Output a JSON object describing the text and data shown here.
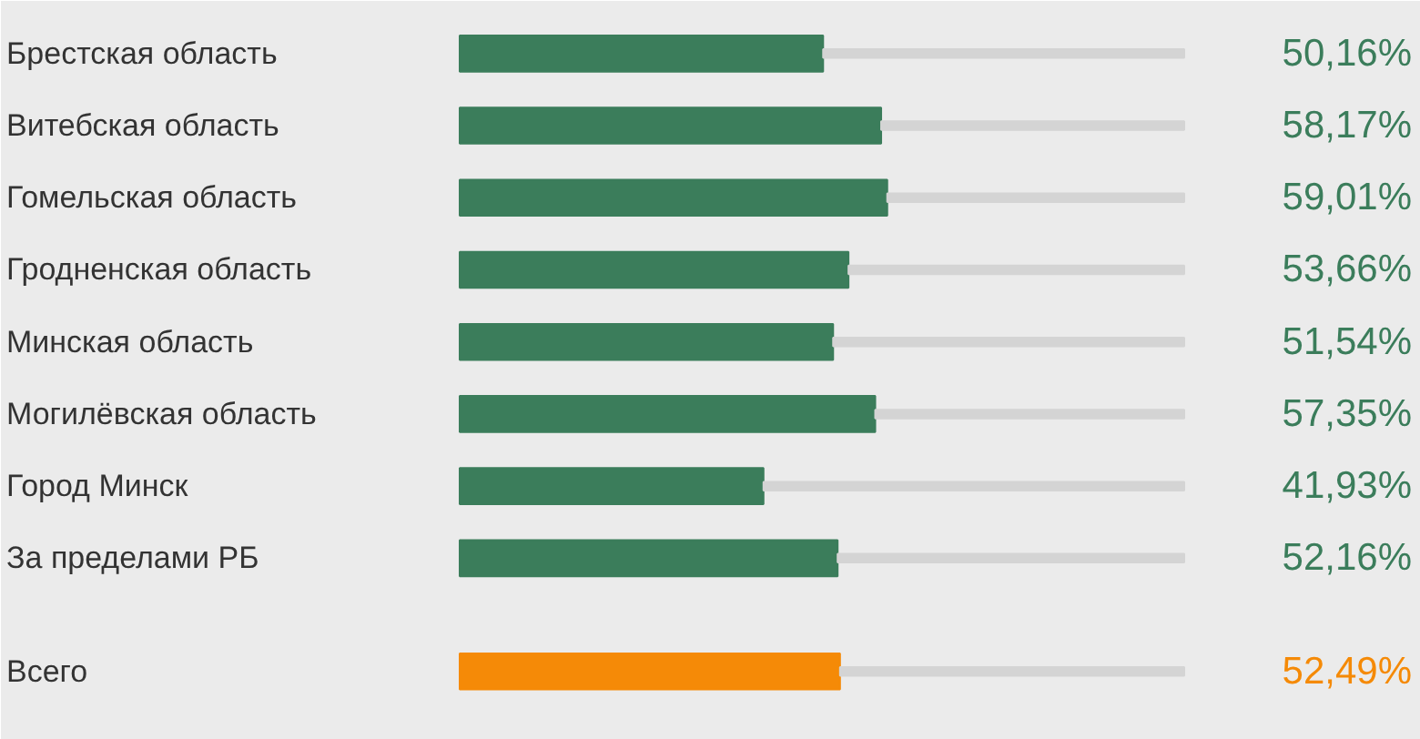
{
  "chart_data": {
    "type": "bar",
    "orientation": "horizontal",
    "stacked": true,
    "categories": [
      "Брестская область",
      "Витебская область",
      "Гомельская область",
      "Гродненская область",
      "Минская область",
      "Могилёвская область",
      "Город Минск",
      "За пределами РБ",
      "Всего"
    ],
    "series": [
      {
        "values": [
          50.16,
          58.17,
          59.01,
          53.66,
          51.54,
          57.35,
          41.93,
          52.16,
          52.49
        ],
        "value_labels": [
          "50,16%",
          "58,17%",
          "59,01%",
          "53,66%",
          "51,54%",
          "57,35%",
          "41,93%",
          "52,16%",
          "52,49%"
        ],
        "colors": [
          "#3b7d5b",
          "#3b7d5b",
          "#3b7d5b",
          "#3b7d5b",
          "#3b7d5b",
          "#3b7d5b",
          "#3b7d5b",
          "#3b7d5b",
          "#f58a07"
        ]
      },
      {
        "values": [
          49.84,
          41.83,
          40.99,
          46.34,
          48.46,
          42.65,
          58.07,
          47.84,
          47.51
        ],
        "color": "#d4d4d4"
      }
    ],
    "xlim": [
      0,
      100
    ],
    "tick_labels": false,
    "grid": false
  }
}
